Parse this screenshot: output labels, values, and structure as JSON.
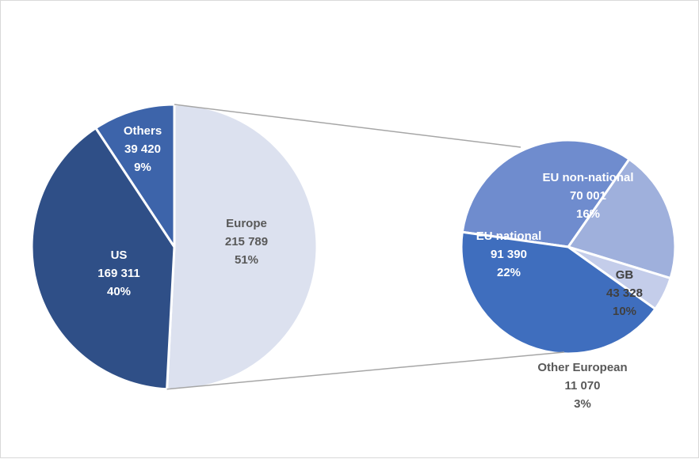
{
  "chart_data": [
    {
      "type": "pie",
      "title": "",
      "slices": [
        {
          "label": "Europe",
          "value": 215789,
          "percent": "51%",
          "value_text": "215 789",
          "color": "#dce1ef",
          "text_color": "#595959"
        },
        {
          "label": "US",
          "value": 169311,
          "percent": "40%",
          "value_text": "169 311",
          "color": "#2f4f87",
          "text_color": "#ffffff"
        },
        {
          "label": "Others",
          "value": 39420,
          "percent": "9%",
          "value_text": "39 420",
          "color": "#3d64aa",
          "text_color": "#ffffff"
        }
      ],
      "exploded_slice": "Europe"
    },
    {
      "type": "pie",
      "title": "",
      "breakdown_of": "Europe",
      "slices": [
        {
          "label": "EU non-national",
          "value": 70001,
          "percent": "16%",
          "value_text": "70 001",
          "color": "#6f8cce",
          "text_color": "#ffffff"
        },
        {
          "label": "GB",
          "value": 43328,
          "percent": "10%",
          "value_text": "43 328",
          "color": "#9fb0dc",
          "text_color": "#404040"
        },
        {
          "label": "Other European",
          "value": 11070,
          "percent": "3%",
          "value_text": "11 070",
          "color": "#c4cdea",
          "text_color": "#595959"
        },
        {
          "label": "EU national",
          "value": 91390,
          "percent": "22%",
          "value_text": "91 390",
          "color": "#3f6ebe",
          "text_color": "#ffffff"
        }
      ]
    }
  ],
  "colors": {
    "connector": "#a6a6a6",
    "border": "#d9d9d9",
    "background": "#ffffff"
  }
}
